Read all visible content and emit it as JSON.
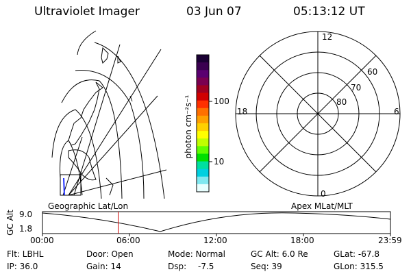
{
  "header": {
    "instrument": "Ultraviolet Imager",
    "date": "03 Jun 07",
    "time": "05:13:12 UT"
  },
  "map_panel": {
    "label": "Geographic Lat/Lon"
  },
  "colorbar": {
    "unit": "photon cm⁻²s⁻¹",
    "tick_labels": [
      "100",
      "10"
    ],
    "colors": [
      "#1a0033",
      "#3a0050",
      "#5a0070",
      "#7a0050",
      "#a00020",
      "#d00000",
      "#ff3000",
      "#ff7000",
      "#ffa000",
      "#ffd000",
      "#ffff00",
      "#c0ff00",
      "#60ff00",
      "#00e000",
      "#00e0a0",
      "#00d0e0",
      "#80e8f0",
      "#e8ffff"
    ]
  },
  "polar_panel": {
    "label": "Apex MLat/MLT",
    "mlt_labels": {
      "top": "12",
      "bottom": "0",
      "left": "18",
      "right": "6"
    },
    "lat_labels": [
      "60",
      "70",
      "80"
    ]
  },
  "altitude_plot": {
    "ylabel": "GC Alt",
    "y_ticks": [
      "9.0",
      "1.8"
    ],
    "x_ticks": [
      "00:00",
      "06:00",
      "12:00",
      "18:00",
      "23:59"
    ],
    "current_time_hours": 5.22,
    "marker_color": "#cc0000"
  },
  "status": {
    "filter": "Flt: LBHL",
    "door": "Door: Open",
    "mode": "Mode: Normal",
    "gc_alt": "GC Alt: 6.0 Re",
    "glat": "GLat: -67.8",
    "ip": "IP: 36.0",
    "gain": "Gain: 14",
    "dsp_label": "Dsp:",
    "dsp_value": "-7.5",
    "seq": "Seq: 39",
    "glon": "GLon: 315.5"
  }
}
